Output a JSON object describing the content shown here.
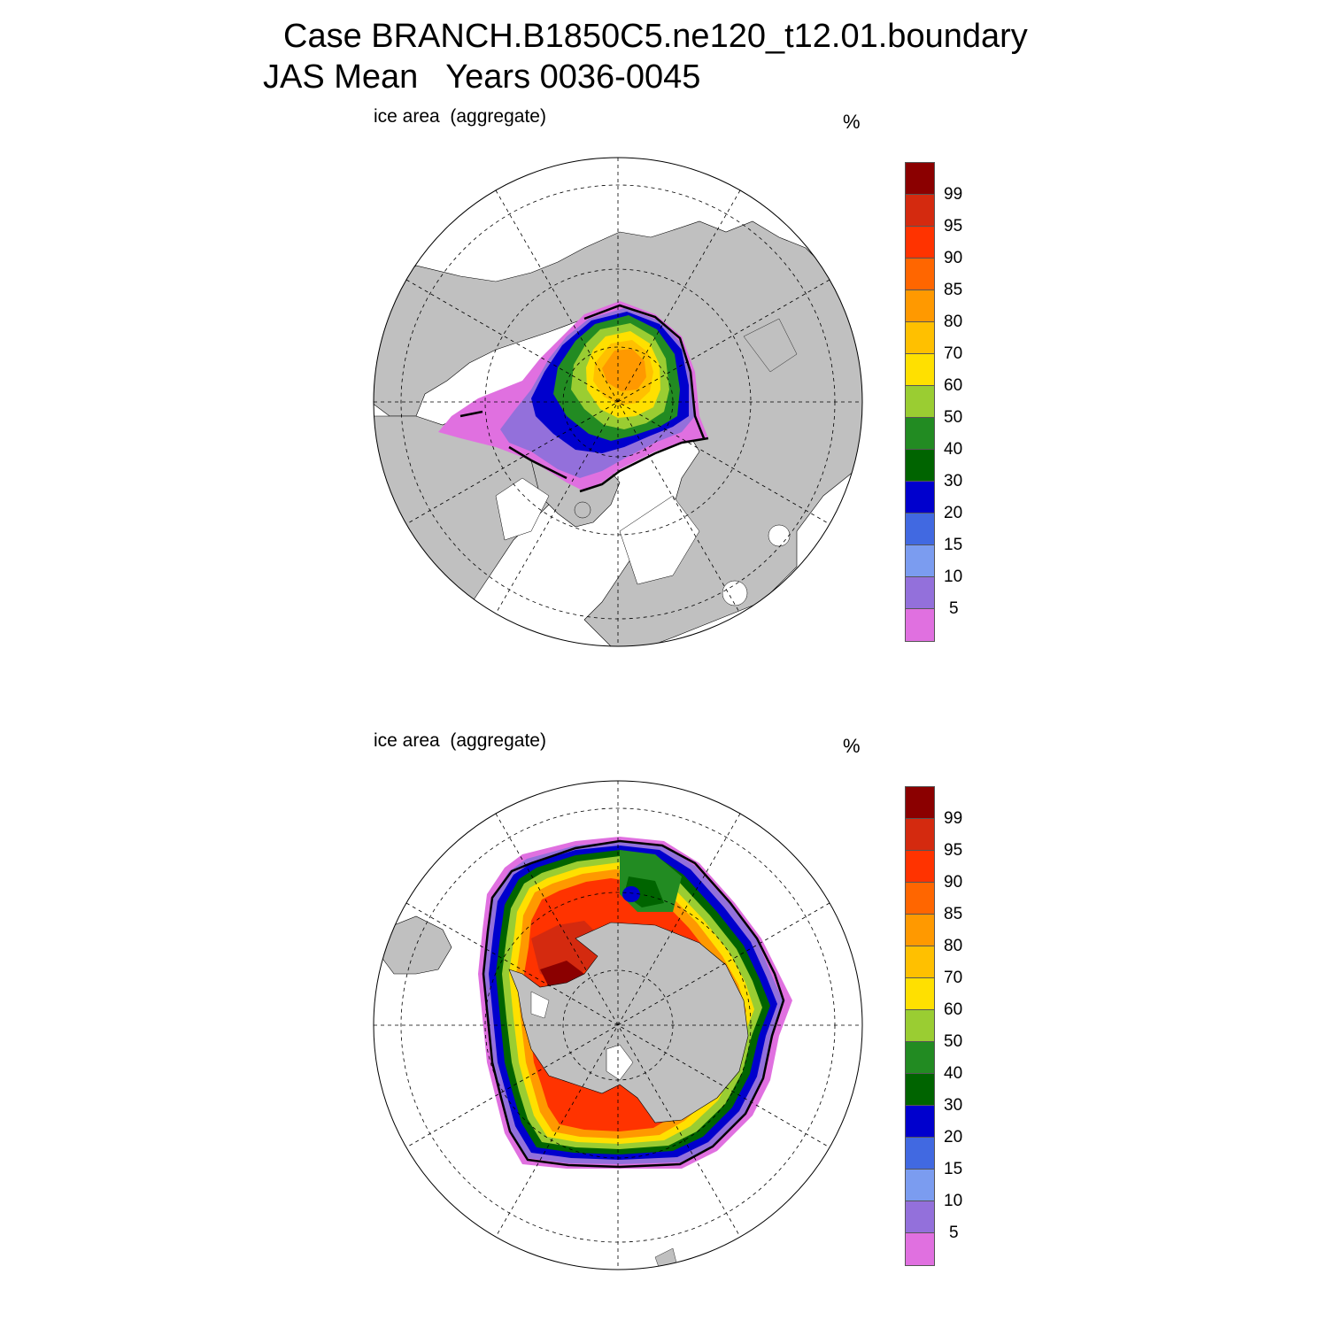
{
  "header": {
    "title_line1": "Case BRANCH.B1850C5.ne120_t12.01.boundary",
    "title_line2": "JAS Mean   Years 0036-0045"
  },
  "panels": [
    {
      "id": "arctic",
      "label": "ice area  (aggregate)",
      "units": "%"
    },
    {
      "id": "antarctic",
      "label": "ice area  (aggregate)",
      "units": "%"
    }
  ],
  "colorbar": {
    "tick_labels": [
      "99",
      "95",
      "90",
      "85",
      "80",
      "70",
      "60",
      "50",
      "40",
      "30",
      "20",
      "15",
      "10",
      "5"
    ],
    "colors_top_to_bottom": [
      "#8b0000",
      "#d42a0f",
      "#ff3300",
      "#ff6600",
      "#ff9900",
      "#ffc000",
      "#ffe000",
      "#9acd32",
      "#228b22",
      "#006400",
      "#0000cd",
      "#4169e1",
      "#7b9cf0",
      "#9370db",
      "#e070e0"
    ]
  },
  "colors": {
    "land": "#c0c0c0",
    "ocean": "#ffffff",
    "grid": "#000000",
    "extent_line": "#000000"
  }
}
